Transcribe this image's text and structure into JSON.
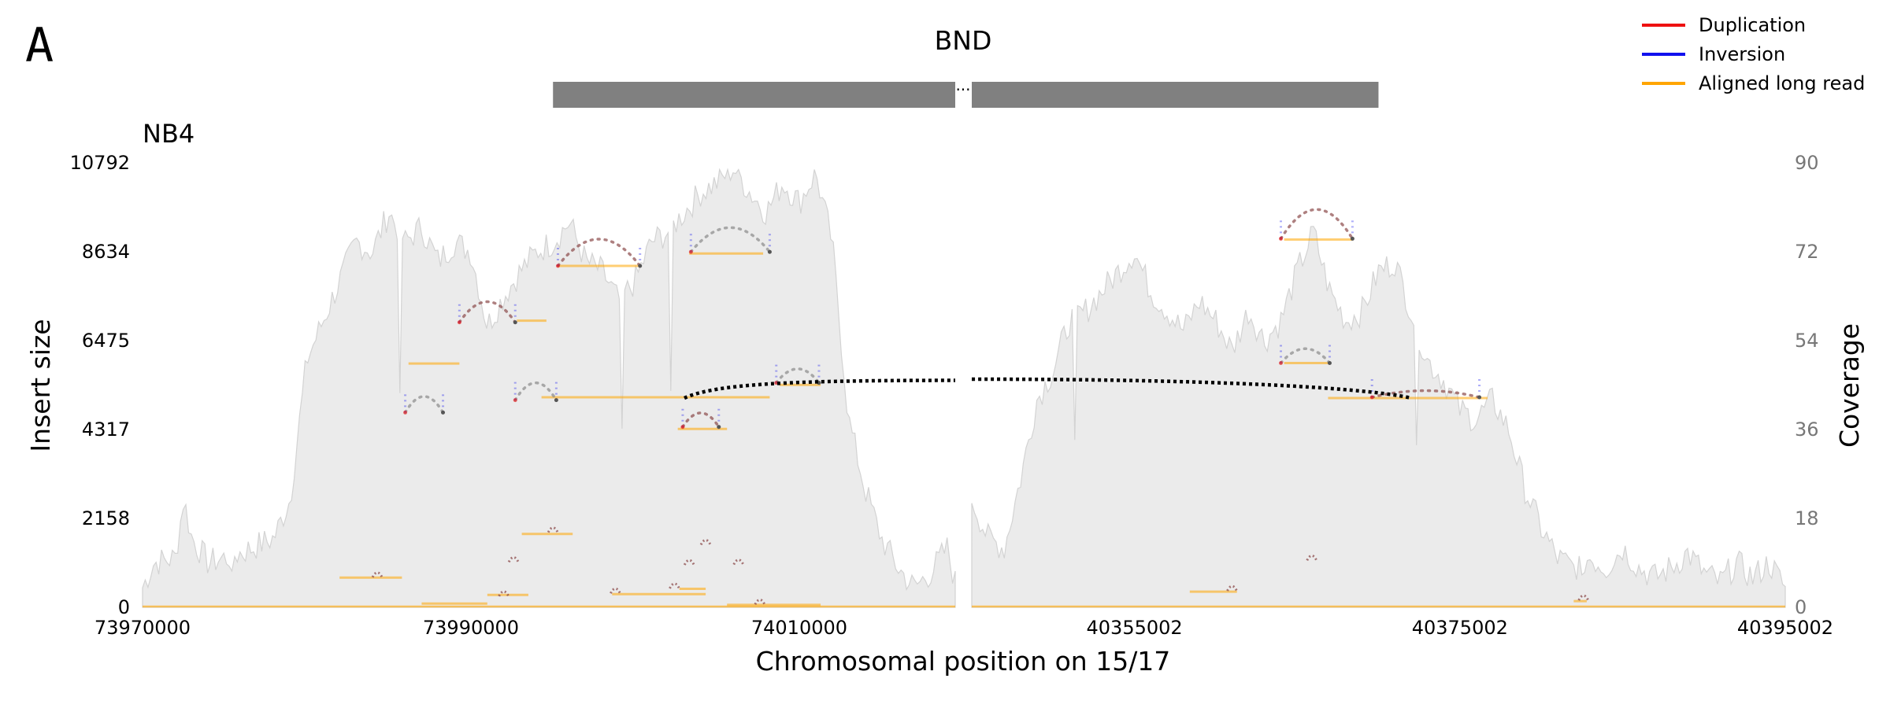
{
  "chart_data": {
    "type": "area",
    "panel_label": "A",
    "title": "BND",
    "sample": "NB4",
    "xlabel": "Chromosomal position on 15/17",
    "ylabel_left": "Insert size",
    "ylabel_right": "Coverage",
    "left_yticks": [
      "0",
      "2158",
      "4317",
      "6475",
      "8634",
      "10792"
    ],
    "right_yticks": [
      "0",
      "18",
      "36",
      "54",
      "72",
      "90"
    ],
    "left_ylim": [
      0,
      10792
    ],
    "right_ylim": [
      0,
      90
    ],
    "segments": [
      {
        "xlim": [
          73970000,
          74019500
        ],
        "xticks": [
          "73970000",
          "73990000",
          "74010000"
        ]
      },
      {
        "xlim": [
          40345002,
          40395002
        ],
        "xticks": [
          "40355002",
          "40375002",
          "40395002"
        ]
      }
    ],
    "legend": [
      {
        "label": "Duplication",
        "color": "#ee1111"
      },
      {
        "label": "Inversion",
        "color": "#1111ee"
      },
      {
        "label": "Aligned long read",
        "color": "#ffa500"
      }
    ],
    "colors": {
      "coverage_fill": "#ebebeb",
      "coverage_line": "#d3d3d3",
      "read": "#ffa500",
      "breakend": "#000000",
      "gene_bar": "#808080"
    },
    "coverage_profile": {
      "segment1": [
        [
          73970000,
          4
        ],
        [
          73970700,
          9
        ],
        [
          73972000,
          10
        ],
        [
          73972500,
          22
        ],
        [
          73973000,
          14
        ],
        [
          73974000,
          9
        ],
        [
          73976000,
          11
        ],
        [
          73978000,
          14
        ],
        [
          73979000,
          22
        ],
        [
          73980000,
          50
        ],
        [
          73981000,
          58
        ],
        [
          73982000,
          66
        ],
        [
          73983000,
          74
        ],
        [
          73984000,
          72
        ],
        [
          73985000,
          80
        ],
        [
          73986000,
          74
        ],
        [
          73987000,
          77
        ],
        [
          73988000,
          70
        ],
        [
          73989000,
          74
        ],
        [
          73990000,
          72
        ],
        [
          73991000,
          57
        ],
        [
          73992000,
          63
        ],
        [
          73993000,
          68
        ],
        [
          73994000,
          72
        ],
        [
          73995000,
          74
        ],
        [
          73996000,
          78
        ],
        [
          73997000,
          70
        ],
        [
          73998000,
          68
        ],
        [
          73999000,
          62
        ],
        [
          74000000,
          66
        ],
        [
          74001000,
          74
        ],
        [
          74002000,
          76
        ],
        [
          74003000,
          80
        ],
        [
          74004000,
          84
        ],
        [
          74005000,
          86
        ],
        [
          74006000,
          89
        ],
        [
          74007000,
          84
        ],
        [
          74008000,
          80
        ],
        [
          74009000,
          86
        ],
        [
          74010000,
          82
        ],
        [
          74011000,
          88
        ],
        [
          74012000,
          74
        ],
        [
          74013000,
          38
        ],
        [
          74014000,
          24
        ],
        [
          74015000,
          14
        ],
        [
          74016000,
          8
        ],
        [
          74017000,
          4
        ],
        [
          74018000,
          7
        ],
        [
          74019000,
          12
        ],
        [
          74019500,
          5
        ]
      ],
      "segment2": [
        [
          40345002,
          22
        ],
        [
          40346002,
          14
        ],
        [
          40347002,
          12
        ],
        [
          40348002,
          26
        ],
        [
          40349002,
          42
        ],
        [
          40350002,
          48
        ],
        [
          40351002,
          58
        ],
        [
          40352002,
          60
        ],
        [
          40353002,
          64
        ],
        [
          40354002,
          68
        ],
        [
          40355002,
          72
        ],
        [
          40356002,
          64
        ],
        [
          40357002,
          60
        ],
        [
          40358002,
          56
        ],
        [
          40359002,
          62
        ],
        [
          40360002,
          58
        ],
        [
          40361002,
          52
        ],
        [
          40362002,
          60
        ],
        [
          40363002,
          54
        ],
        [
          40364002,
          58
        ],
        [
          40365002,
          68
        ],
        [
          40366002,
          76
        ],
        [
          40367002,
          64
        ],
        [
          40368002,
          58
        ],
        [
          40369002,
          60
        ],
        [
          40370002,
          68
        ],
        [
          40371002,
          70
        ],
        [
          40372002,
          60
        ],
        [
          40373002,
          50
        ],
        [
          40374002,
          46
        ],
        [
          40375002,
          40
        ],
        [
          40376002,
          38
        ],
        [
          40377002,
          42
        ],
        [
          40378002,
          36
        ],
        [
          40379002,
          24
        ],
        [
          40380002,
          16
        ],
        [
          40381002,
          10
        ],
        [
          40382002,
          8
        ],
        [
          40383002,
          10
        ],
        [
          40384002,
          8
        ],
        [
          40385002,
          12
        ],
        [
          40386002,
          8
        ],
        [
          40387002,
          6
        ],
        [
          40388002,
          8
        ],
        [
          40389002,
          11
        ],
        [
          40390002,
          7
        ],
        [
          40391002,
          5
        ],
        [
          40392002,
          9
        ],
        [
          40393002,
          6
        ],
        [
          40394002,
          9
        ],
        [
          40395002,
          4
        ]
      ]
    },
    "long_reads": [
      {
        "segment": 1,
        "x": [
          73986200,
          73989300
        ],
        "y": 5920
      },
      {
        "segment": 1,
        "x": [
          73992800,
          73994600
        ],
        "y": 6960
      },
      {
        "segment": 1,
        "x": [
          73995300,
          74000300
        ],
        "y": 8290
      },
      {
        "segment": 1,
        "x": [
          74003300,
          74007800
        ],
        "y": 8590
      },
      {
        "segment": 1,
        "x": [
          73994300,
          74008200
        ],
        "y": 5100
      },
      {
        "segment": 1,
        "x": [
          74002600,
          74005600
        ],
        "y": 4330
      },
      {
        "segment": 1,
        "x": [
          74008800,
          74011300
        ],
        "y": 5400
      },
      {
        "segment": 1,
        "x": [
          73982000,
          73985800
        ],
        "y": 720
      },
      {
        "segment": 1,
        "x": [
          73993100,
          73996200
        ],
        "y": 1780
      },
      {
        "segment": 1,
        "x": [
          73991000,
          73993500
        ],
        "y": 300
      },
      {
        "segment": 1,
        "x": [
          73998600,
          74004300
        ],
        "y": 320
      },
      {
        "segment": 1,
        "x": [
          74002700,
          74004300
        ],
        "y": 450
      },
      {
        "segment": 1,
        "x": [
          74005600,
          74011300
        ],
        "y": 60
      },
      {
        "segment": 1,
        "x": [
          73987000,
          73991000
        ],
        "y": 90
      },
      {
        "segment": 2,
        "x": [
          40364200,
          40368400
        ],
        "y": 8930
      },
      {
        "segment": 2,
        "x": [
          40364200,
          40367000
        ],
        "y": 5930
      },
      {
        "segment": 2,
        "x": [
          40366900,
          40376700
        ],
        "y": 5080
      },
      {
        "segment": 2,
        "x": [
          40358400,
          40361300
        ],
        "y": 380
      },
      {
        "segment": 2,
        "x": [
          40382000,
          40382800
        ],
        "y": 150
      }
    ],
    "arcs": [
      {
        "segment": 1,
        "x": [
          73986000,
          73988300
        ],
        "y": 4730,
        "h": 390
      },
      {
        "segment": 1,
        "x": [
          73989300,
          73992700
        ],
        "y": 6920,
        "h": 500
      },
      {
        "segment": 1,
        "x": [
          73992700,
          73995200
        ],
        "y": 5030,
        "h": 420
      },
      {
        "segment": 1,
        "x": [
          73995300,
          74000300
        ],
        "y": 8290,
        "h": 650
      },
      {
        "segment": 1,
        "x": [
          74003400,
          74008200
        ],
        "y": 8630,
        "h": 590
      },
      {
        "segment": 1,
        "x": [
          74002900,
          74005100
        ],
        "y": 4380,
        "h": 340
      },
      {
        "segment": 1,
        "x": [
          74008600,
          74011200
        ],
        "y": 5450,
        "h": 340
      },
      {
        "segment": 2,
        "x": [
          40364000,
          40368400
        ],
        "y": 8950,
        "h": 710
      },
      {
        "segment": 2,
        "x": [
          40364000,
          40367000
        ],
        "y": 5930,
        "h": 350
      },
      {
        "segment": 2,
        "x": [
          40369600,
          40376200
        ],
        "y": 5100,
        "h": 160
      }
    ],
    "small_marks": [
      {
        "segment": 1,
        "x": 73984300,
        "y": 730
      },
      {
        "segment": 1,
        "x": 73992600,
        "y": 1100
      },
      {
        "segment": 1,
        "x": 73995000,
        "y": 1820
      },
      {
        "segment": 1,
        "x": 74003300,
        "y": 1030
      },
      {
        "segment": 1,
        "x": 74004300,
        "y": 1520
      },
      {
        "segment": 1,
        "x": 74006300,
        "y": 1040
      },
      {
        "segment": 1,
        "x": 73992000,
        "y": 270
      },
      {
        "segment": 1,
        "x": 73998800,
        "y": 340
      },
      {
        "segment": 1,
        "x": 74002400,
        "y": 460
      },
      {
        "segment": 1,
        "x": 74007600,
        "y": 70
      },
      {
        "segment": 2,
        "x": 40365900,
        "y": 1140
      },
      {
        "segment": 2,
        "x": 40361000,
        "y": 400
      },
      {
        "segment": 2,
        "x": 40382600,
        "y": 170
      }
    ],
    "breakend": [
      {
        "segment": 1,
        "x": [
          74003000,
          74019500
        ],
        "y": [
          5080,
          5510
        ]
      },
      {
        "segment": 2,
        "x": [
          40345002,
          40372000
        ],
        "y": [
          5540,
          5080
        ]
      }
    ],
    "gene_bar": [
      {
        "segment": 1,
        "x": [
          73995000,
          74019500
        ]
      },
      {
        "segment": 2,
        "x": [
          40345002,
          40370000
        ]
      }
    ]
  }
}
